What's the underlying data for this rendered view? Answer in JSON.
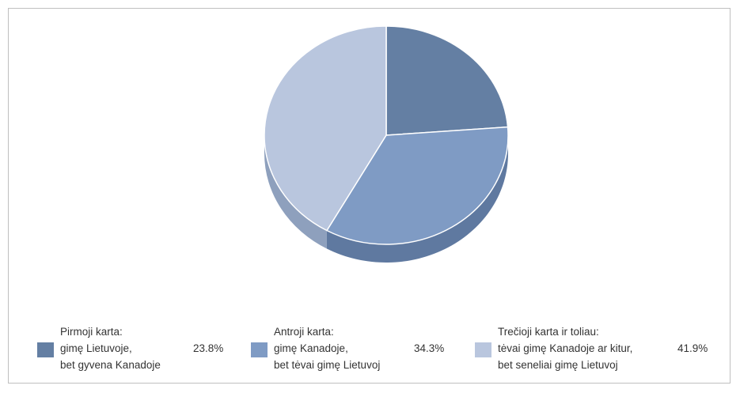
{
  "chart_data": {
    "type": "pie",
    "title": "",
    "slices": [
      {
        "label_lines": [
          "Pirmoji karta:",
          "gimę Lietuvoje,",
          "bet gyvena Kanadoje"
        ],
        "value": 23.8,
        "value_label": "23.8%",
        "color": "#647fa3",
        "side_color": "#4f6689"
      },
      {
        "label_lines": [
          "Antroji karta:",
          "gimę Kanadoje,",
          "bet tėvai gimę Lietuvoj"
        ],
        "value": 34.3,
        "value_label": "34.3%",
        "color": "#7f9bc4",
        "side_color": "#5f79a0"
      },
      {
        "label_lines": [
          "Trečioji karta ir toliau:",
          "tėvai gimę Kanadoje ar kitur,",
          "bet seneliai gimę Lietuvoj"
        ],
        "value": 41.9,
        "value_label": "41.9%",
        "color": "#b9c6de",
        "side_color": "#8ea0bd"
      }
    ],
    "start_position": "12 o'clock",
    "direction": "clockwise",
    "style": "3d-tilted",
    "legend_position": "bottom"
  }
}
